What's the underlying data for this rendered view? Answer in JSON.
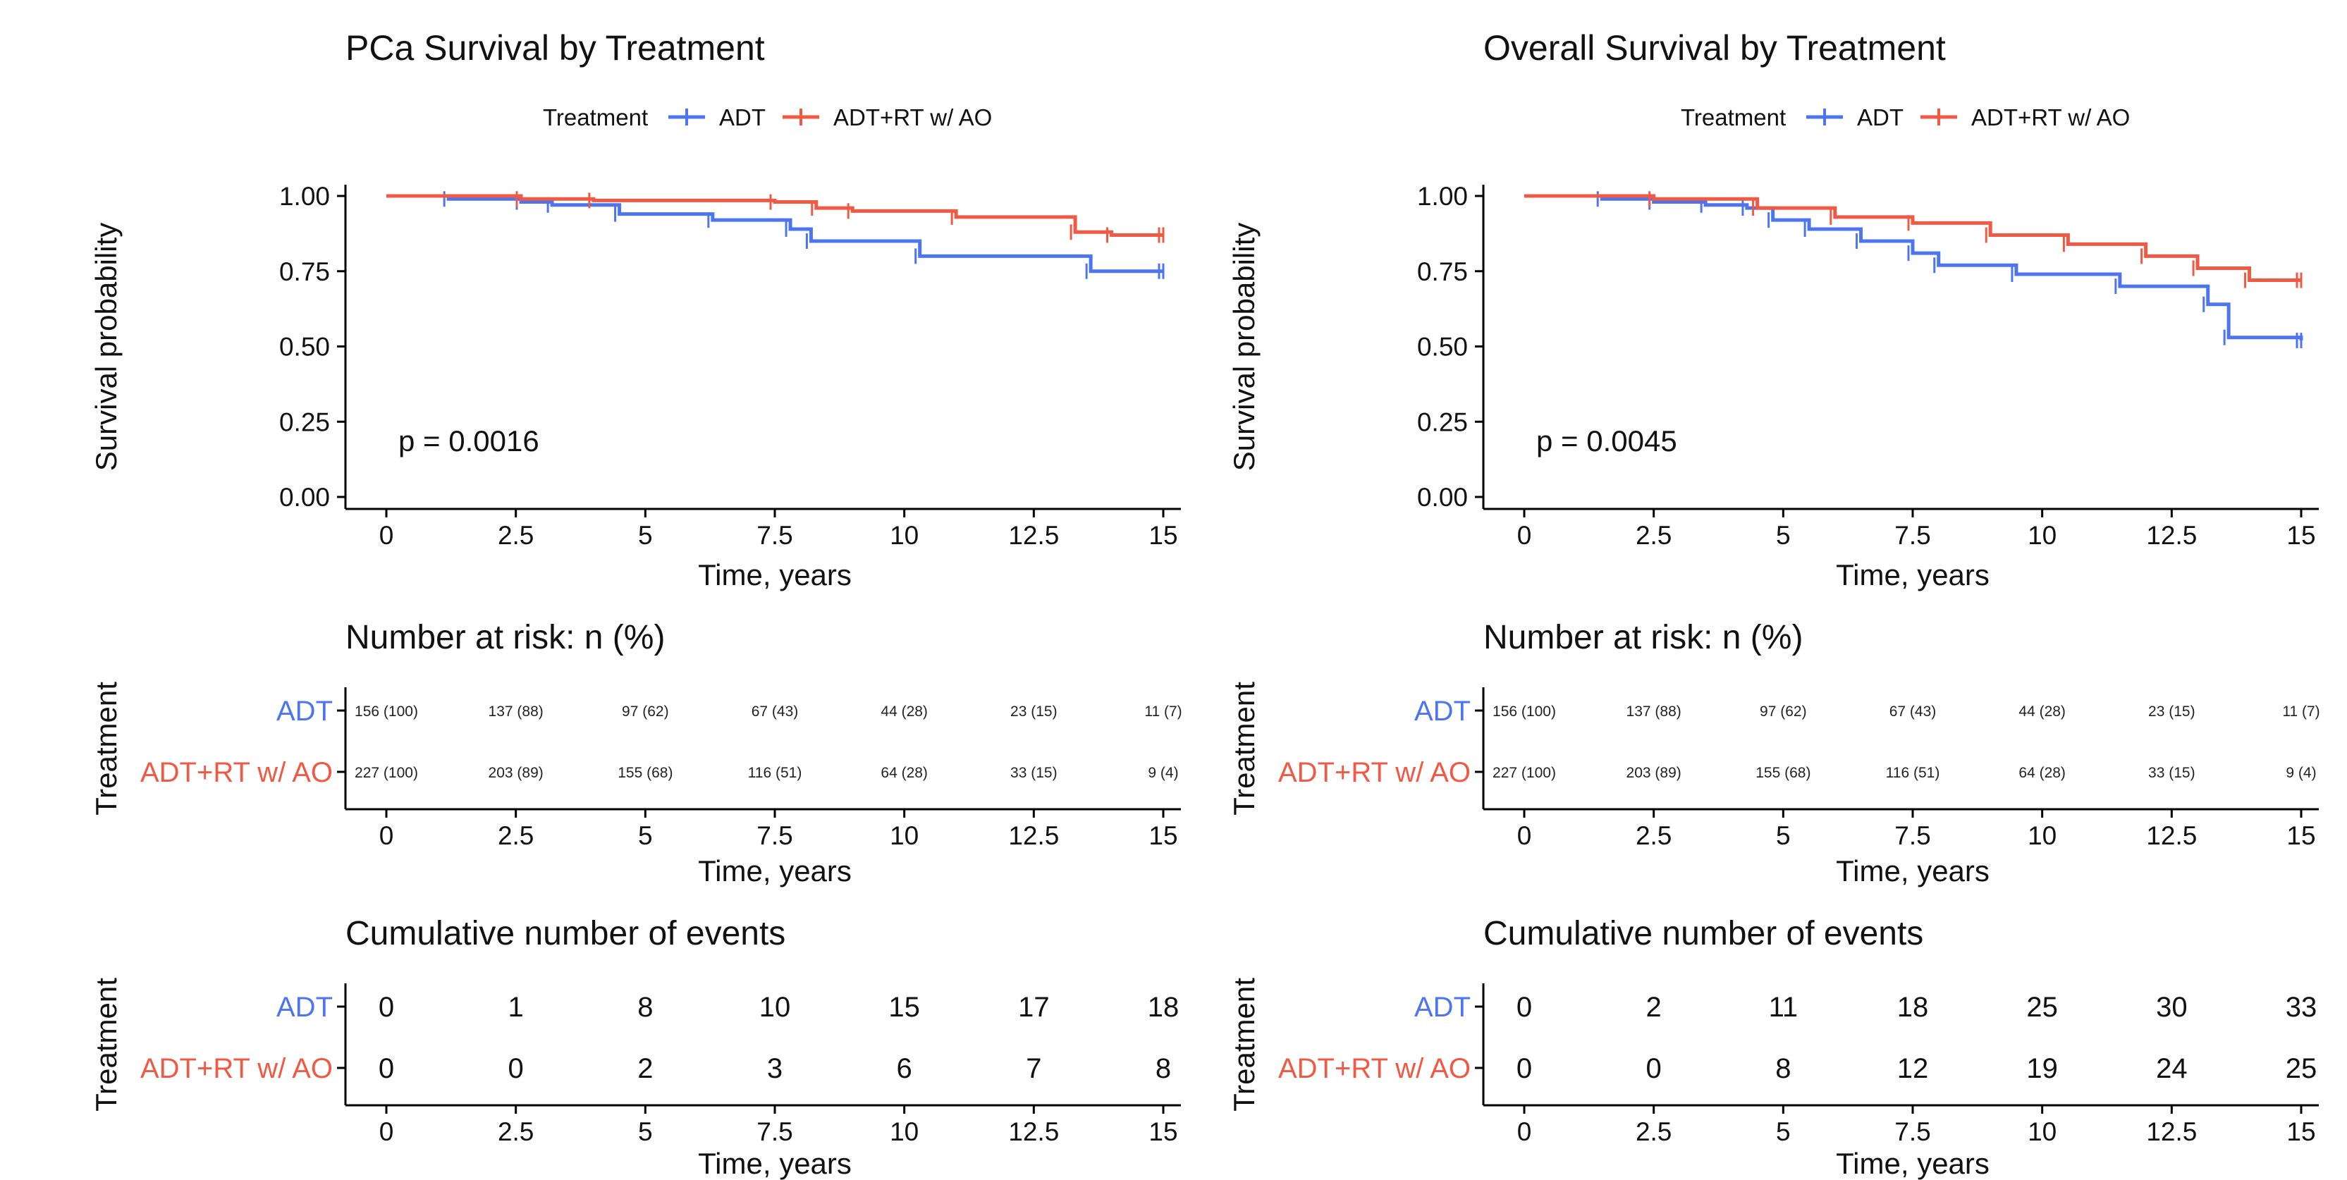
{
  "colors": {
    "adt": "#4d75f0",
    "adtrt": "#f05a45",
    "axis": "#000000",
    "text": "#222222"
  },
  "legend": {
    "title": "Treatment",
    "items": [
      "ADT",
      "ADT+RT w/ AO"
    ]
  },
  "common": {
    "ylabel": "Survival probability",
    "xlabel": "Time, years",
    "treatment_label": "Treatment",
    "risk_title": "Number at risk: n (%)",
    "events_title": "Cumulative number of events",
    "x_ticks": [
      "0",
      "2.5",
      "5",
      "7.5",
      "10",
      "12.5",
      "15"
    ],
    "y_ticks": [
      "0.00",
      "0.25",
      "0.50",
      "0.75",
      "1.00"
    ],
    "groups": [
      "ADT",
      "ADT+RT w/ AO"
    ]
  },
  "panels": [
    {
      "title": "PCa Survival by Treatment",
      "pvalue": "p = 0.0016",
      "risk": {
        "ADT": [
          "156 (100)",
          "137 (88)",
          "97 (62)",
          "67 (43)",
          "44 (28)",
          "23 (15)",
          "11 (7)"
        ],
        "ADT+RT w/ AO": [
          "227 (100)",
          "203 (89)",
          "155 (68)",
          "116 (51)",
          "64 (28)",
          "33 (15)",
          "9 (4)"
        ]
      },
      "events": {
        "ADT": [
          "0",
          "1",
          "8",
          "10",
          "15",
          "17",
          "18"
        ],
        "ADT+RT w/ AO": [
          "0",
          "0",
          "2",
          "3",
          "6",
          "7",
          "8"
        ]
      }
    },
    {
      "title": "Overall Survival by Treatment",
      "pvalue": "p = 0.0045",
      "risk": {
        "ADT": [
          "156 (100)",
          "137 (88)",
          "97 (62)",
          "67 (43)",
          "44 (28)",
          "23 (15)",
          "11 (7)"
        ],
        "ADT+RT w/ AO": [
          "227 (100)",
          "203 (89)",
          "155 (68)",
          "116 (51)",
          "64 (28)",
          "33 (15)",
          "9 (4)"
        ]
      },
      "events": {
        "ADT": [
          "0",
          "2",
          "11",
          "18",
          "25",
          "30",
          "33"
        ],
        "ADT+RT w/ AO": [
          "0",
          "0",
          "8",
          "12",
          "19",
          "24",
          "25"
        ]
      }
    }
  ],
  "chart_data": [
    {
      "type": "line",
      "title": "PCa Survival by Treatment",
      "xlabel": "Time, years",
      "ylabel": "Survival probability",
      "xlim": [
        0,
        15
      ],
      "ylim": [
        0,
        1
      ],
      "series": [
        {
          "name": "ADT",
          "x": [
            0,
            1.2,
            2.6,
            3.2,
            4.5,
            6.3,
            7.8,
            8.2,
            10.3,
            13.6,
            15
          ],
          "y": [
            1.0,
            0.99,
            0.98,
            0.97,
            0.94,
            0.92,
            0.89,
            0.85,
            0.8,
            0.75,
            0.75
          ]
        },
        {
          "name": "ADT+RT w/ AO",
          "x": [
            0,
            2.6,
            4.0,
            7.5,
            8.3,
            9.0,
            11.0,
            13.3,
            14.0,
            15
          ],
          "y": [
            1.0,
            0.99,
            0.985,
            0.98,
            0.96,
            0.95,
            0.93,
            0.88,
            0.87,
            0.87
          ]
        }
      ]
    },
    {
      "type": "line",
      "title": "Overall Survival by Treatment",
      "xlabel": "Time, years",
      "ylabel": "Survival probability",
      "xlim": [
        0,
        15
      ],
      "ylim": [
        0,
        1
      ],
      "series": [
        {
          "name": "ADT",
          "x": [
            0,
            1.5,
            2.5,
            3.5,
            4.3,
            4.8,
            5.5,
            6.5,
            7.5,
            8.0,
            9.5,
            11.5,
            13.2,
            13.6,
            15
          ],
          "y": [
            1.0,
            0.99,
            0.98,
            0.97,
            0.96,
            0.92,
            0.89,
            0.85,
            0.81,
            0.77,
            0.74,
            0.7,
            0.64,
            0.53,
            0.52
          ]
        },
        {
          "name": "ADT+RT w/ AO",
          "x": [
            0,
            2.5,
            4.5,
            6.0,
            7.5,
            9.0,
            10.5,
            12.0,
            13.0,
            14.0,
            15
          ],
          "y": [
            1.0,
            0.99,
            0.96,
            0.93,
            0.91,
            0.87,
            0.84,
            0.8,
            0.76,
            0.72,
            0.72
          ]
        }
      ]
    }
  ]
}
